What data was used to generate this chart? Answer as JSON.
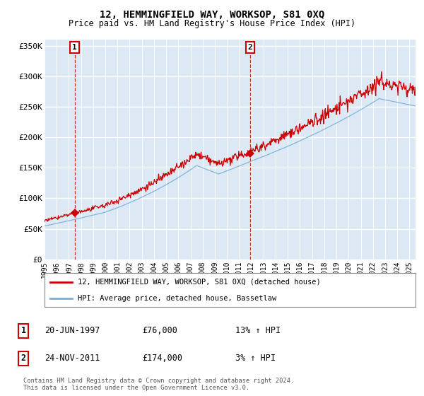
{
  "title": "12, HEMMINGFIELD WAY, WORKSOP, S81 0XQ",
  "subtitle": "Price paid vs. HM Land Registry's House Price Index (HPI)",
  "ylabel_ticks": [
    "£0",
    "£50K",
    "£100K",
    "£150K",
    "£200K",
    "£250K",
    "£300K",
    "£350K"
  ],
  "ytick_values": [
    0,
    50000,
    100000,
    150000,
    200000,
    250000,
    300000,
    350000
  ],
  "ylim": [
    0,
    360000
  ],
  "xlim_start": 1995.0,
  "xlim_end": 2025.5,
  "bg_color": "#dce9f5",
  "line_color_red": "#cc0000",
  "line_color_blue": "#7aaed6",
  "grid_color": "#ffffff",
  "sale1_year": 1997.47,
  "sale1_price": 76000,
  "sale2_year": 2011.9,
  "sale2_price": 174000,
  "legend_label_red": "12, HEMMINGFIELD WAY, WORKSOP, S81 0XQ (detached house)",
  "legend_label_blue": "HPI: Average price, detached house, Bassetlaw",
  "table_rows": [
    {
      "num": "1",
      "date": "20-JUN-1997",
      "price": "£76,000",
      "hpi": "13% ↑ HPI"
    },
    {
      "num": "2",
      "date": "24-NOV-2011",
      "price": "£174,000",
      "hpi": "3% ↑ HPI"
    }
  ],
  "footnote": "Contains HM Land Registry data © Crown copyright and database right 2024.\nThis data is licensed under the Open Government Licence v3.0.",
  "xtick_years": [
    1995,
    1996,
    1997,
    1998,
    1999,
    2000,
    2001,
    2002,
    2003,
    2004,
    2005,
    2006,
    2007,
    2008,
    2009,
    2010,
    2011,
    2012,
    2013,
    2014,
    2015,
    2016,
    2017,
    2018,
    2019,
    2020,
    2021,
    2022,
    2023,
    2024,
    2025
  ]
}
